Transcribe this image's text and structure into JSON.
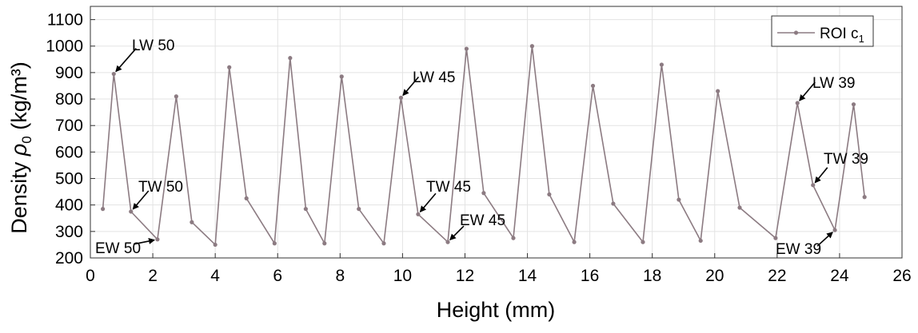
{
  "chart_data": {
    "type": "line",
    "xlabel": "Height (mm)",
    "ylabel_prefix": "Density ",
    "ylabel_symbol": "ρ",
    "ylabel_subscript": "0",
    "ylabel_suffix": " (kg/m³)",
    "xlim": [
      0,
      26
    ],
    "ylim": [
      200,
      1150
    ],
    "xticks": [
      0,
      2,
      4,
      6,
      8,
      10,
      12,
      14,
      16,
      18,
      20,
      22,
      24,
      26
    ],
    "yticks": [
      200,
      300,
      400,
      500,
      600,
      700,
      800,
      900,
      1000,
      1100
    ],
    "grid": true,
    "legend_position": "top-right",
    "series": [
      {
        "name": "ROI c",
        "name_subscript": "1",
        "color": "#8c7b82",
        "x": [
          0.4,
          0.75,
          1.3,
          2.15,
          2.75,
          3.25,
          4.0,
          4.45,
          5.0,
          5.9,
          6.4,
          6.9,
          7.5,
          8.05,
          8.6,
          9.4,
          9.95,
          10.5,
          11.45,
          12.05,
          12.6,
          13.55,
          14.15,
          14.7,
          15.5,
          16.1,
          16.75,
          17.7,
          18.3,
          18.85,
          19.55,
          20.1,
          20.8,
          21.95,
          22.65,
          23.15,
          23.85,
          24.45,
          24.8
        ],
        "y": [
          385,
          895,
          375,
          270,
          810,
          335,
          250,
          920,
          425,
          255,
          955,
          385,
          255,
          885,
          385,
          255,
          805,
          365,
          260,
          990,
          445,
          275,
          1000,
          440,
          260,
          850,
          405,
          260,
          930,
          420,
          265,
          830,
          390,
          275,
          785,
          475,
          305,
          780,
          430
        ]
      }
    ],
    "annotations": [
      {
        "label": "LW 50",
        "x": 0.75,
        "y": 895
      },
      {
        "label": "TW 50",
        "x": 1.3,
        "y": 375
      },
      {
        "label": "EW 50",
        "x": 2.15,
        "y": 270
      },
      {
        "label": "LW 45",
        "x": 9.95,
        "y": 805
      },
      {
        "label": "TW 45",
        "x": 10.5,
        "y": 365
      },
      {
        "label": "EW 45",
        "x": 11.45,
        "y": 260
      },
      {
        "label": "LW 39",
        "x": 22.65,
        "y": 785
      },
      {
        "label": "TW 39",
        "x": 23.15,
        "y": 475
      },
      {
        "label": "EW 39",
        "x": 23.85,
        "y": 305
      }
    ]
  }
}
